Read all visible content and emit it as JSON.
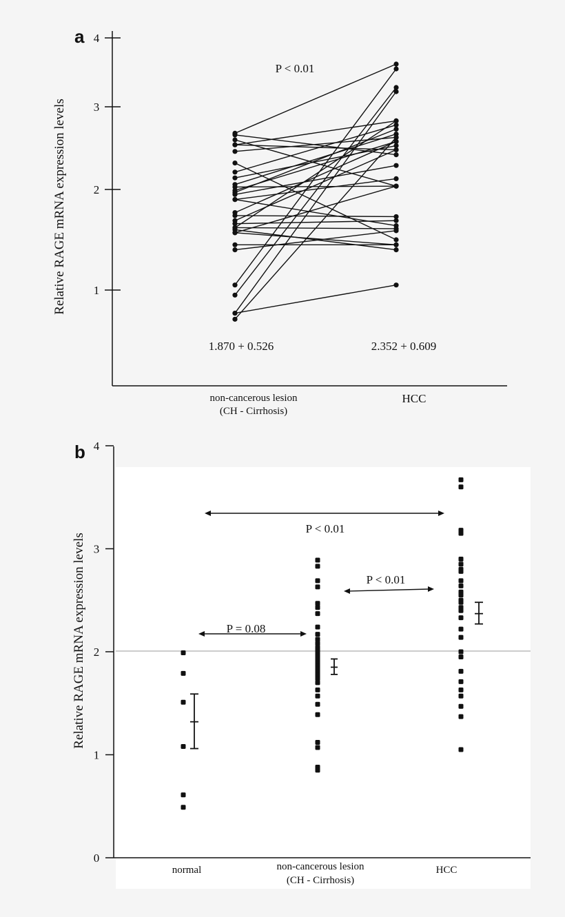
{
  "chart_data": [
    {
      "panel_label": "a",
      "type": "line",
      "ylabel": "Relative RAGE mRNA expression levels",
      "categories": [
        "non-cancerous lesion",
        "HCC"
      ],
      "category_sublabels": [
        "(CH - Cirrhosis)",
        ""
      ],
      "yticks": [
        1,
        2,
        3,
        4
      ],
      "ylim": [
        0.55,
        4
      ],
      "annotation": "P < 0.01",
      "stats": [
        "1.870 + 0.526",
        "2.352 + 0.609"
      ],
      "grid": false,
      "pairs": [
        [
          2.68,
          3.62
        ],
        [
          2.66,
          2.42
        ],
        [
          2.6,
          2.04
        ],
        [
          2.54,
          2.83
        ],
        [
          2.54,
          2.48
        ],
        [
          2.46,
          2.63
        ],
        [
          2.32,
          1.5
        ],
        [
          2.21,
          2.78
        ],
        [
          2.14,
          2.53
        ],
        [
          2.06,
          2.67
        ],
        [
          2.03,
          2.04
        ],
        [
          1.99,
          2.58
        ],
        [
          1.97,
          2.73
        ],
        [
          1.95,
          2.29
        ],
        [
          1.9,
          2.13
        ],
        [
          1.9,
          1.64
        ],
        [
          1.77,
          2.58
        ],
        [
          1.74,
          1.73
        ],
        [
          1.69,
          2.48
        ],
        [
          1.66,
          1.69
        ],
        [
          1.62,
          1.61
        ],
        [
          1.6,
          1.4
        ],
        [
          1.57,
          1.45
        ],
        [
          1.45,
          1.45
        ],
        [
          1.4,
          1.59
        ],
        [
          1.05,
          3.55
        ],
        [
          0.95,
          3.28
        ],
        [
          0.77,
          1.05
        ],
        [
          0.77,
          3.22
        ],
        [
          0.71,
          2.63
        ],
        [
          1.62,
          2.83
        ],
        [
          1.57,
          2.04
        ]
      ]
    },
    {
      "panel_label": "b",
      "type": "scatter",
      "ylabel": "Relative RAGE mRNA expression levels",
      "categories": [
        "normal",
        "non-cancerous lesion",
        "HCC"
      ],
      "category_sublabels": [
        "",
        "(CH - Cirrhosis)",
        ""
      ],
      "yticks": [
        0,
        1,
        2,
        3,
        4
      ],
      "ylim": [
        0,
        4
      ],
      "reference_line": 2,
      "grid": false,
      "series": [
        {
          "values": [
            1.99,
            1.79,
            1.51,
            1.08,
            0.61,
            0.49
          ],
          "mean": 1.32,
          "err_low": 1.06,
          "err_high": 1.59
        },
        {
          "values": [
            2.89,
            2.83,
            2.69,
            2.63,
            2.47,
            2.43,
            2.37,
            2.24,
            2.17,
            2.12,
            2.08,
            2.04,
            2.01,
            1.98,
            1.95,
            1.92,
            1.89,
            1.86,
            1.83,
            1.8,
            1.77,
            1.74,
            1.7,
            1.63,
            1.57,
            1.49,
            1.39,
            1.12,
            1.07,
            0.88,
            0.85
          ],
          "mean": 1.85,
          "err_low": 1.78,
          "err_high": 1.93
        },
        {
          "values": [
            3.67,
            3.6,
            3.18,
            3.15,
            2.9,
            2.85,
            2.8,
            2.78,
            2.69,
            2.64,
            2.58,
            2.55,
            2.5,
            2.48,
            2.43,
            2.4,
            2.33,
            2.22,
            2.14,
            2.0,
            1.95,
            1.81,
            1.71,
            1.63,
            1.57,
            1.47,
            1.37,
            1.05
          ],
          "mean": 2.37,
          "err_low": 2.27,
          "err_high": 2.48
        }
      ],
      "comparisons": [
        {
          "label": "P < 0.01",
          "from": "normal",
          "to": "HCC"
        },
        {
          "label": "P = 0.08",
          "from": "normal",
          "to": "non-cancerous lesion"
        },
        {
          "label": "P < 0.01",
          "from": "non-cancerous lesion",
          "to": "HCC"
        }
      ]
    }
  ]
}
